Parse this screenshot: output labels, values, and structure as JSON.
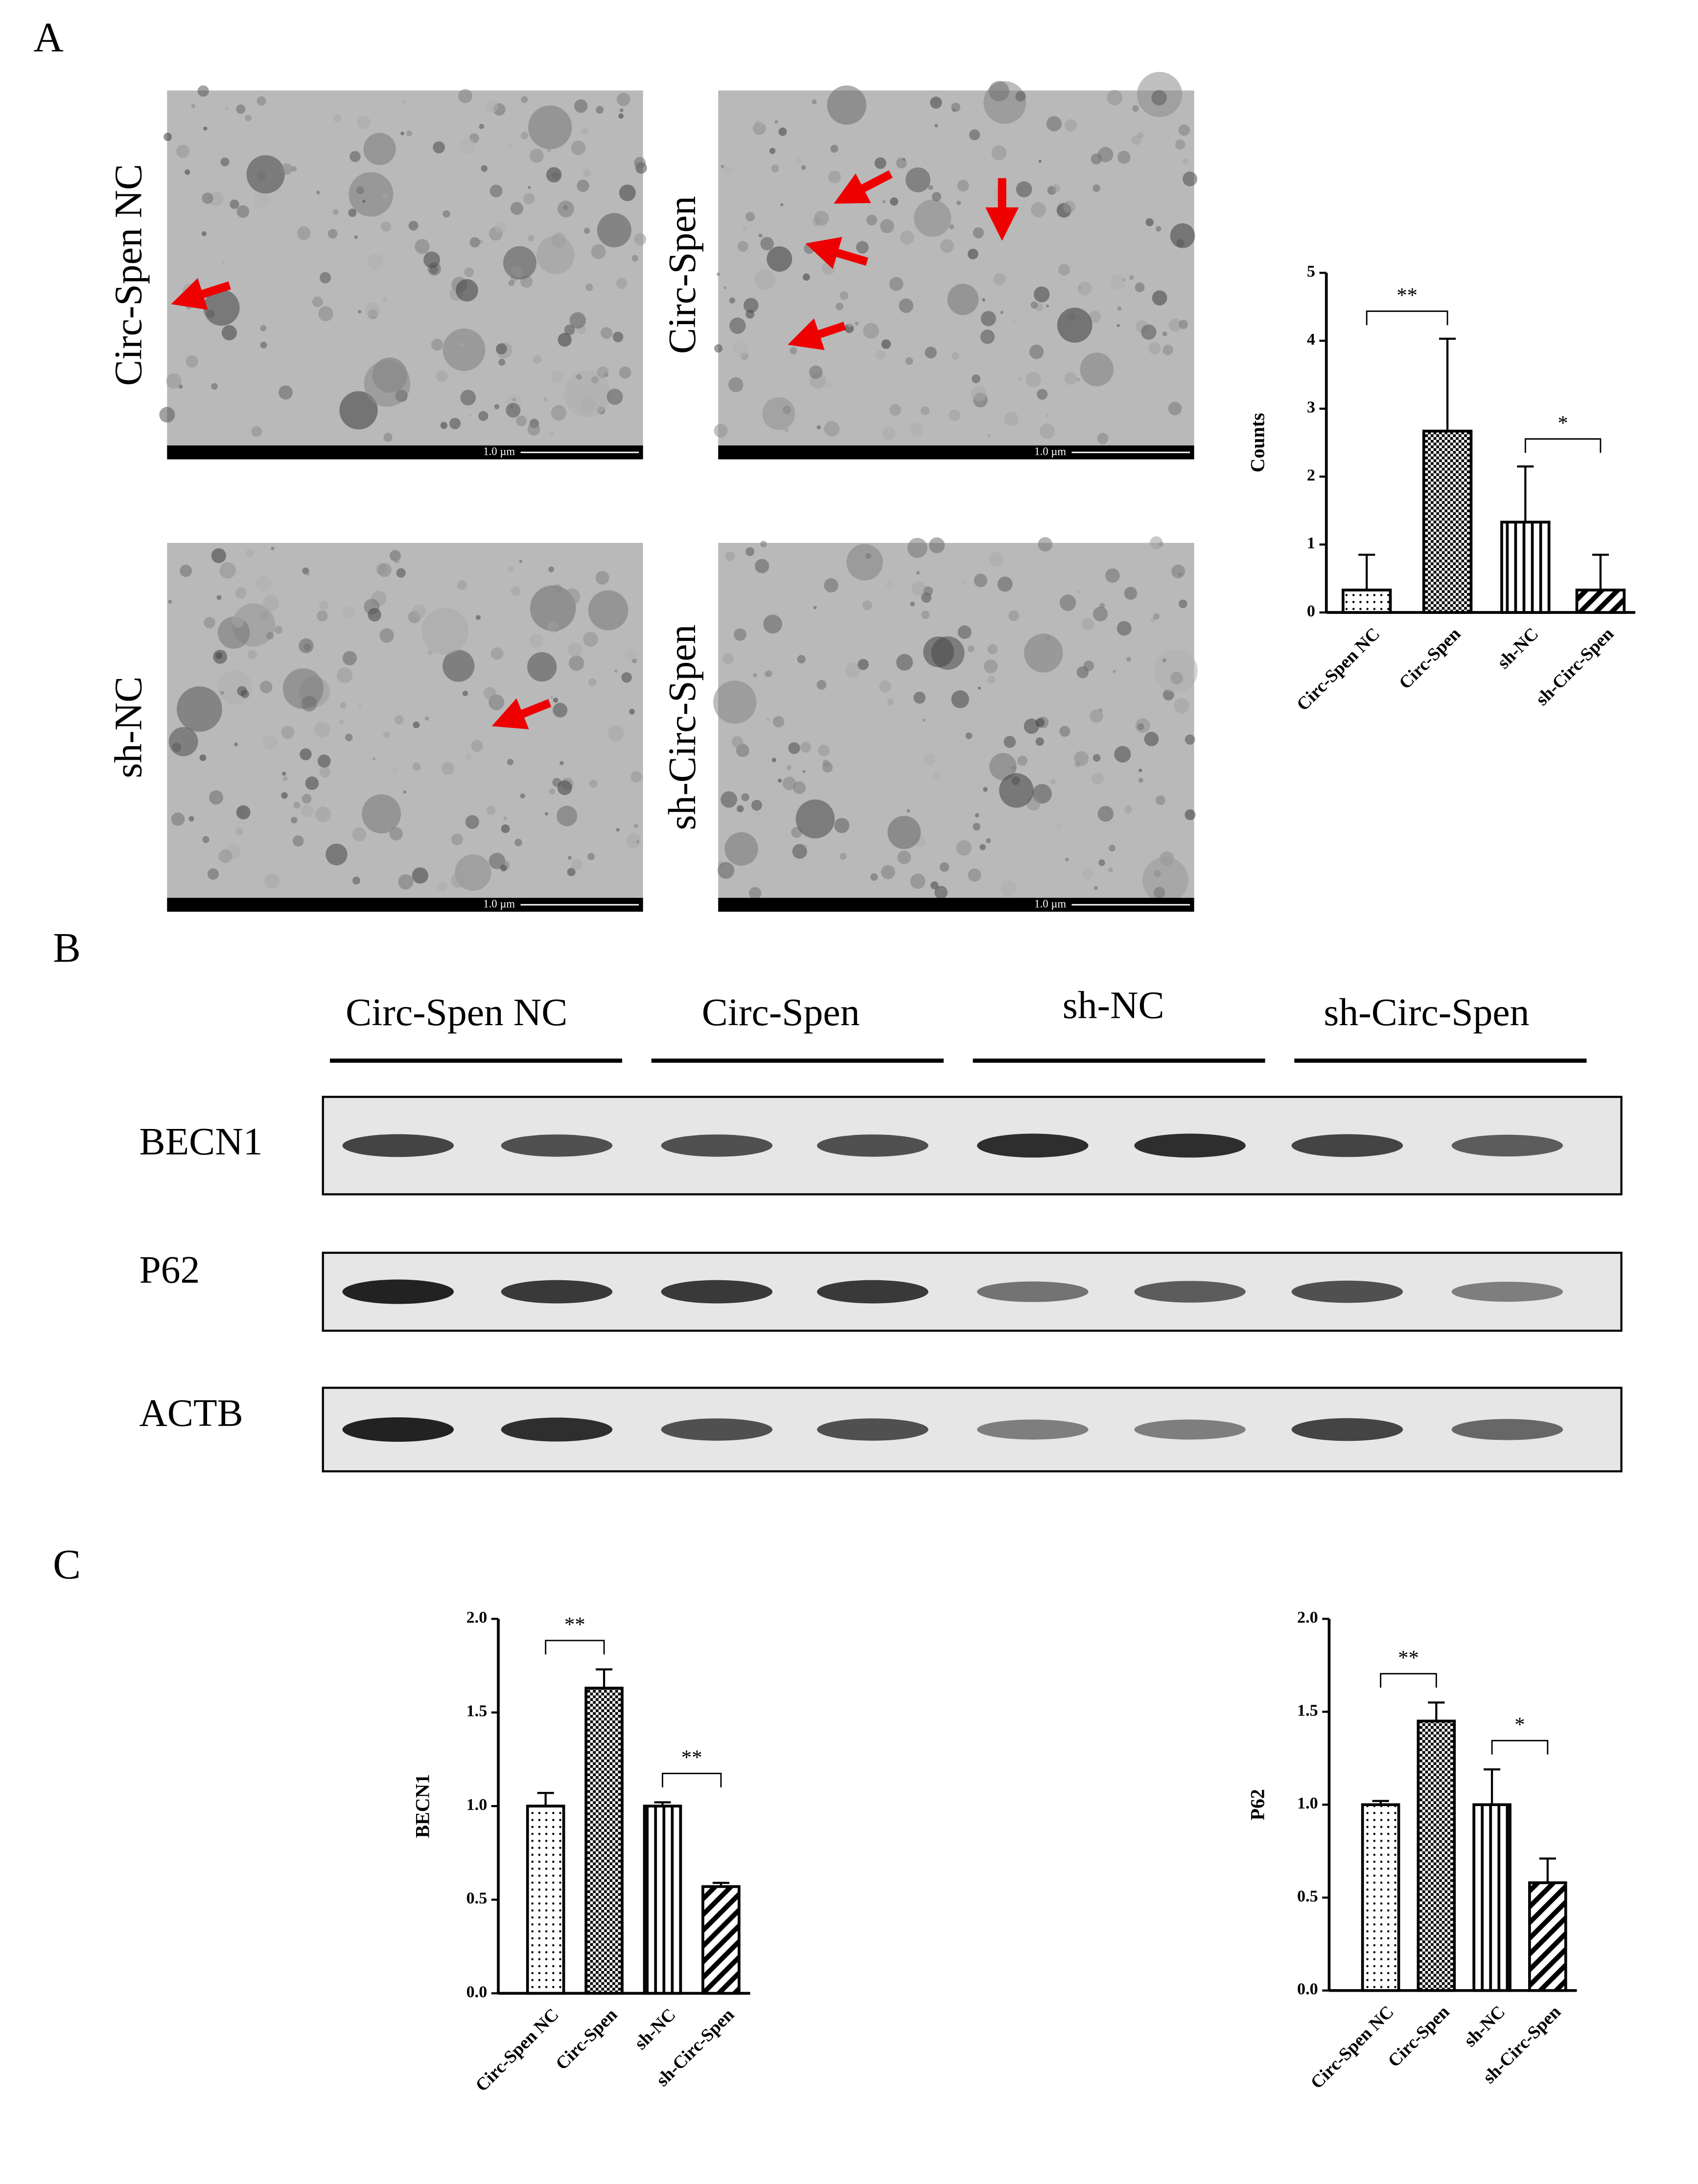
{
  "panel_labels": [
    "A",
    "B",
    "C"
  ],
  "micrographs": [
    {
      "label": "Circ-Spen NC",
      "scale_bar": "1.0 µm"
    },
    {
      "label": "Circ-Spen",
      "scale_bar": "1.0 µm"
    },
    {
      "label": "sh-NC",
      "scale_bar": "1.0 µm"
    },
    {
      "label": "sh-Circ-Spen",
      "scale_bar": "1.0 µm"
    }
  ],
  "western_blot": {
    "groups": [
      "Circ-Spen NC",
      "Circ-Spen",
      "sh-NC",
      "sh-Circ-Spen"
    ],
    "rows": [
      "BECN1",
      "P62",
      "ACTB"
    ]
  },
  "chart_data": [
    {
      "type": "bar",
      "y_label": "Counts",
      "categories": [
        "Circ-Spen NC",
        "Circ-Spen",
        "sh-NC",
        "sh-Circ-Spen"
      ],
      "values": [
        0.33,
        2.67,
        1.33,
        0.33
      ],
      "errors": [
        0.52,
        1.36,
        0.82,
        0.52
      ],
      "patterns": [
        "dots",
        "checker",
        "vertical",
        "diagonal"
      ],
      "color": "#000000",
      "ylim": [
        0,
        5
      ],
      "yticks": [
        0,
        1,
        2,
        3,
        4,
        5
      ],
      "annotations": [
        {
          "text": "**",
          "from": 0,
          "to": 1
        },
        {
          "text": "*",
          "from": 2,
          "to": 3
        }
      ]
    },
    {
      "type": "bar",
      "y_label": "BECN1",
      "categories": [
        "Circ-Spen NC",
        "Circ-Spen",
        "sh-NC",
        "sh-Circ-Spen"
      ],
      "values": [
        1.0,
        1.63,
        1.0,
        0.57
      ],
      "errors": [
        0.07,
        0.1,
        0.02,
        0.02
      ],
      "patterns": [
        "dots",
        "checker",
        "vertical",
        "diagonal"
      ],
      "color": "#000000",
      "ylim": [
        0,
        2
      ],
      "yticks": [
        {
          "value": 0,
          "label": "0.0"
        },
        {
          "value": 0.5,
          "label": "0.5"
        },
        {
          "value": 1,
          "label": "1.0"
        },
        {
          "value": 1.5,
          "label": "1.5"
        },
        {
          "value": 2,
          "label": "2.0"
        }
      ],
      "annotations": [
        {
          "text": "**",
          "from": 0,
          "to": 1
        },
        {
          "text": "**",
          "from": 2,
          "to": 3
        }
      ]
    },
    {
      "type": "bar",
      "y_label": "P62",
      "categories": [
        "Circ-Spen NC",
        "Circ-Spen",
        "sh-NC",
        "sh-Circ-Spen"
      ],
      "values": [
        1.0,
        1.45,
        1.0,
        0.58
      ],
      "errors": [
        0.02,
        0.1,
        0.19,
        0.13
      ],
      "patterns": [
        "dots",
        "checker",
        "vertical",
        "diagonal"
      ],
      "color": "#000000",
      "ylim": [
        0,
        2
      ],
      "yticks": [
        {
          "value": 0,
          "label": "0.0"
        },
        {
          "value": 0.5,
          "label": "0.5"
        },
        {
          "value": 1,
          "label": "1.0"
        },
        {
          "value": 1.5,
          "label": "1.5"
        },
        {
          "value": 2,
          "label": "2.0"
        }
      ],
      "annotations": [
        {
          "text": "**",
          "from": 0,
          "to": 1
        },
        {
          "text": "*",
          "from": 2,
          "to": 3
        }
      ]
    }
  ]
}
